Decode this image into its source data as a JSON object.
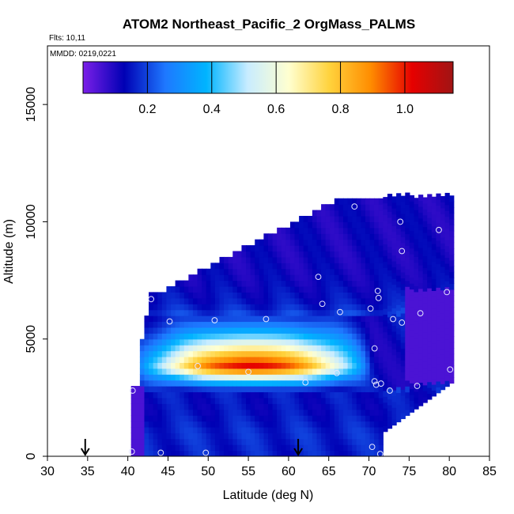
{
  "chart_data": {
    "type": "heatmap",
    "title": "ATOM2 Northeast_Pacific_2 OrgMass_PALMS",
    "flights_label": "Flts: 10,11",
    "dates_label": "MMDD: 0219,0221",
    "xlabel": "Latitude (deg N)",
    "ylabel": "Altitude (m)",
    "xlim": [
      30,
      85
    ],
    "ylim": [
      0,
      17500
    ],
    "x_ticks": [
      "30",
      "35",
      "40",
      "45",
      "50",
      "55",
      "60",
      "65",
      "70",
      "75",
      "80",
      "85"
    ],
    "y_ticks": [
      "0",
      "5000",
      "10000",
      "15000"
    ],
    "colorbar": {
      "range": [
        0.0,
        1.15
      ],
      "ticks": [
        "0.2",
        "0.4",
        "0.6",
        "0.8",
        "1.0"
      ],
      "tick_values": [
        0.2,
        0.4,
        0.6,
        0.8,
        1.0
      ],
      "colors": [
        "#7b1fe8",
        "#0000b4",
        "#1e78ff",
        "#00b4ff",
        "#c8ecff",
        "#ffffd0",
        "#ffd23c",
        "#ff8c00",
        "#e60000",
        "#a01414"
      ]
    },
    "arrows_latitude": [
      34.7,
      61.2
    ],
    "field_profile": [
      {
        "altitude": 300,
        "value": 0.16
      },
      {
        "altitude": 1000,
        "value": 0.17
      },
      {
        "altitude": 2000,
        "value": 0.14
      },
      {
        "altitude": 2800,
        "value": 0.15
      },
      {
        "altitude": 3300,
        "value": 0.5
      },
      {
        "altitude": 3800,
        "value": 1.05
      },
      {
        "altitude": 4300,
        "value": 0.85
      },
      {
        "altitude": 4750,
        "value": 0.62
      },
      {
        "altitude": 5250,
        "value": 0.4
      },
      {
        "altitude": 5800,
        "value": 0.22
      },
      {
        "altitude": 6500,
        "value": 0.15
      },
      {
        "altitude": 7500,
        "value": 0.12
      },
      {
        "altitude": 8500,
        "value": 0.11
      },
      {
        "altitude": 9500,
        "value": 0.11
      },
      {
        "altitude": 10500,
        "value": 0.11
      }
    ],
    "samples": [
      {
        "lat": 40.5,
        "alt": 200
      },
      {
        "lat": 44.1,
        "alt": 150
      },
      {
        "lat": 49.7,
        "alt": 150
      },
      {
        "lat": 40.6,
        "alt": 2800
      },
      {
        "lat": 42.9,
        "alt": 6700
      },
      {
        "lat": 45.2,
        "alt": 5750
      },
      {
        "lat": 48.7,
        "alt": 3850
      },
      {
        "lat": 50.8,
        "alt": 5800
      },
      {
        "lat": 55.0,
        "alt": 3600
      },
      {
        "lat": 57.2,
        "alt": 5850
      },
      {
        "lat": 62.1,
        "alt": 3150
      },
      {
        "lat": 63.7,
        "alt": 7650
      },
      {
        "lat": 64.2,
        "alt": 6500
      },
      {
        "lat": 66.0,
        "alt": 3550
      },
      {
        "lat": 66.4,
        "alt": 6150
      },
      {
        "lat": 68.2,
        "alt": 10650
      },
      {
        "lat": 70.2,
        "alt": 6300
      },
      {
        "lat": 70.4,
        "alt": 400
      },
      {
        "lat": 70.7,
        "alt": 4600
      },
      {
        "lat": 70.7,
        "alt": 3200
      },
      {
        "lat": 70.9,
        "alt": 3050
      },
      {
        "lat": 71.1,
        "alt": 7050
      },
      {
        "lat": 71.2,
        "alt": 6750
      },
      {
        "lat": 71.4,
        "alt": 100
      },
      {
        "lat": 71.5,
        "alt": 3100
      },
      {
        "lat": 72.6,
        "alt": 2800
      },
      {
        "lat": 73.0,
        "alt": 5850
      },
      {
        "lat": 73.9,
        "alt": 10000
      },
      {
        "lat": 74.1,
        "alt": 8750
      },
      {
        "lat": 74.1,
        "alt": 5700
      },
      {
        "lat": 76.0,
        "alt": 3000
      },
      {
        "lat": 76.4,
        "alt": 6100
      },
      {
        "lat": 78.7,
        "alt": 9650
      },
      {
        "lat": 79.7,
        "alt": 7000
      },
      {
        "lat": 80.1,
        "alt": 3700
      }
    ]
  }
}
